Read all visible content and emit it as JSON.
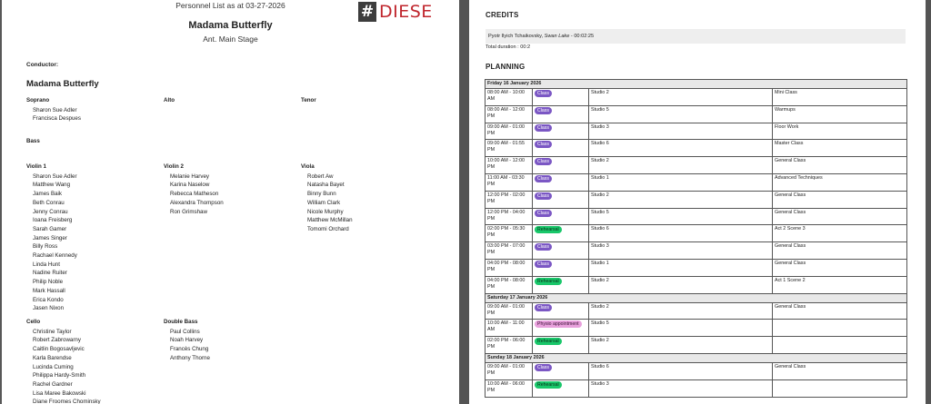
{
  "left_page": {
    "date_line": "Personnel List as at 03-27-2026",
    "logo_mark": "#",
    "logo_text": "DIESE",
    "production_title": "Madama Butterfly",
    "venue": "Ant. Main Stage",
    "conductor_label": "Conductor:",
    "section_title": "Madama Butterfly",
    "sections": [
      {
        "name": "Soprano",
        "members": [
          "Sharon Sue Adler",
          "Francisca Despues"
        ]
      },
      {
        "name": "Alto",
        "members": []
      },
      {
        "name": "Tenor",
        "members": []
      },
      {
        "name": "Bass",
        "members": []
      },
      {
        "name": "Violin 1",
        "members": [
          "Sharon Sue Adler",
          "Matthew Wang",
          "James Baik",
          "Beth Conrau",
          "Jenny Conrau",
          "Ioana Freisberg",
          "Sarah Gamer",
          "James Singer",
          "Billy Ross",
          "Rachael Kennedy",
          "Linda Hunt",
          "Nadine Ruiter",
          "Philip Noble",
          "Mark Hassall",
          "Erica Kondo",
          "Jasen Nixon"
        ]
      },
      {
        "name": "Violin 2",
        "members": [
          "Melanie Harvey",
          "Karina Naselow",
          "Rebecca Matheson",
          "Alexandra Thompson",
          "Ron Grimshaw"
        ]
      },
      {
        "name": "Viola",
        "members": [
          "Robert Aw",
          "Natasha Bayet",
          "Binny Bunn",
          "William Clark",
          "Nicole Murphy",
          "Matthew McMillan",
          "Tomomi Orchard"
        ]
      },
      {
        "name": "Cello",
        "members": [
          "Christine Taylor",
          "Robert Zabrowarny",
          "Caitlin Bogosavljevic",
          "Karla Barendse",
          "Lucinda Cuming",
          "Philippa Hardy-Smith",
          "Rachel Gardner",
          "Lisa Maree Bakowski",
          "Diane Froomes Chominsky"
        ]
      },
      {
        "name": "Double Bass",
        "members": [
          "Paul Collins",
          "Noah Harvey",
          "Francès Chung",
          "Anthony Thorne"
        ]
      }
    ]
  },
  "right_page": {
    "credits_heading": "CREDITS",
    "credit_composer": "Pyotr Ilyich Tchaikovsky",
    "credit_separator": ", ",
    "credit_work": "Swan Lake",
    "credit_time": " - 00:02:25",
    "total_duration": "Total duration : 00:2",
    "planning_heading": "PLANNING",
    "days": [
      {
        "label": "Friday 16 January 2026",
        "rows": [
          {
            "time": "08:00 AM - 10:00 AM",
            "badge": "Class",
            "kind": "class",
            "room": "Studio 2",
            "activity": "Mini Class"
          },
          {
            "time": "08:00 AM - 12:00 PM",
            "badge": "Class",
            "kind": "class",
            "room": "Studio 5",
            "activity": "Warmups"
          },
          {
            "time": "09:00 AM - 01:00 PM",
            "badge": "Class",
            "kind": "class",
            "room": "Studio 3",
            "activity": "Floor Work"
          },
          {
            "time": "09:00 AM - 01:55 PM",
            "badge": "Class",
            "kind": "class",
            "room": "Studio 6",
            "activity": "Master Class"
          },
          {
            "time": "10:00 AM - 12:00 PM",
            "badge": "Class",
            "kind": "class",
            "room": "Studio 2",
            "activity": "General Class"
          },
          {
            "time": "11:00 AM - 03:30 PM",
            "badge": "Class",
            "kind": "class",
            "room": "Studio 1",
            "activity": "Advanced Techniques"
          },
          {
            "time": "12:00 PM - 02:00 PM",
            "badge": "Class",
            "kind": "class",
            "room": "Studio 2",
            "activity": "General Class"
          },
          {
            "time": "12:00 PM - 04:00 PM",
            "badge": "Class",
            "kind": "class",
            "room": "Studio 5",
            "activity": "General Class"
          },
          {
            "time": "02:00 PM - 05:30 PM",
            "badge": "Rehearsal",
            "kind": "rehearsal",
            "room": "Studio 6",
            "activity": "Act 2 Scene 3"
          },
          {
            "time": "03:00 PM - 07:00 PM",
            "badge": "Class",
            "kind": "class",
            "room": "Studio 3",
            "activity": "General Class"
          },
          {
            "time": "04:00 PM - 08:00 PM",
            "badge": "Class",
            "kind": "class",
            "room": "Studio 1",
            "activity": "General Class"
          },
          {
            "time": "04:00 PM - 08:00 PM",
            "badge": "Rehearsal",
            "kind": "rehearsal",
            "room": "Studio 2",
            "activity": "Act 1 Scene 2"
          }
        ]
      },
      {
        "label": "Saturday 17 January 2026",
        "rows": [
          {
            "time": "09:00 AM - 01:00 PM",
            "badge": "Class",
            "kind": "class",
            "room": "Studio 2",
            "activity": "General Class"
          },
          {
            "time": "10:00 AM - 11:00 AM",
            "badge": "Physio appointment",
            "kind": "physio",
            "room": "Studio 5",
            "activity": ""
          },
          {
            "time": "02:00 PM - 06:00 PM",
            "badge": "Rehearsal",
            "kind": "rehearsal",
            "room": "Studio 2",
            "activity": ""
          }
        ]
      },
      {
        "label": "Sunday 18 January 2026",
        "rows": [
          {
            "time": "09:00 AM - 01:00 PM",
            "badge": "Class",
            "kind": "class",
            "room": "Studio 6",
            "activity": "General Class"
          },
          {
            "time": "10:00 AM - 06:00 PM",
            "badge": "Rehearsal",
            "kind": "rehearsal",
            "room": "Studio 3",
            "activity": ""
          }
        ]
      }
    ]
  }
}
